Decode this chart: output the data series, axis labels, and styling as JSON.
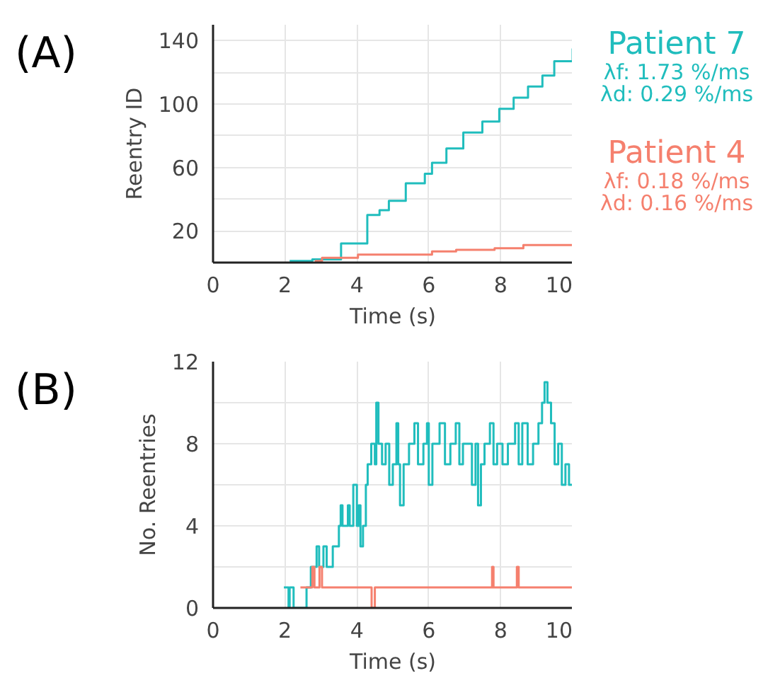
{
  "chart_data": [
    {
      "type": "step",
      "title": "(A)",
      "xlabel": "Time (s)",
      "ylabel": "Reentry ID",
      "xlim": [
        0,
        10
      ],
      "ylim": [
        0,
        150
      ],
      "xticks": [
        0,
        2,
        4,
        6,
        8,
        10
      ],
      "yticks": [
        20,
        {
          "value": 40,
          "label": null
        },
        60,
        {
          "value": 80,
          "label": null
        },
        100,
        {
          "value": 120,
          "label": null
        },
        140
      ],
      "grid": true,
      "line_style": "solid",
      "annotations": [
        "λf: 1.73 %/ms",
        "λd: 0.29 %/ms",
        "λf: 0.18 %/ms",
        "λd: 0.16 %/ms"
      ],
      "series": [
        {
          "name": "Patient 7",
          "color": "#20bdbd",
          "x": [
            2.13,
            2.76,
            3.56,
            4.29,
            4.63,
            4.89,
            5.36,
            5.89,
            6.09,
            6.49,
            6.96,
            7.49,
            7.96,
            8.36,
            8.76,
            9.16,
            9.49,
            10.0
          ],
          "values": [
            1,
            2,
            12,
            30,
            33,
            39,
            50,
            56,
            63,
            72,
            82,
            89,
            97,
            104,
            111,
            118,
            127,
            135
          ]
        },
        {
          "name": "Patient 4",
          "color": "#f5806e",
          "x": [
            2.83,
            3.03,
            4.03,
            6.09,
            6.76,
            7.83,
            8.63,
            10.0
          ],
          "values": [
            1,
            3,
            5,
            7,
            8,
            9,
            11,
            11
          ]
        }
      ]
    },
    {
      "type": "step",
      "title": "(B)",
      "xlabel": "Time (s)",
      "ylabel": "No. Reentries",
      "xlim": [
        0,
        10
      ],
      "ylim": [
        0,
        12
      ],
      "xticks": [
        0,
        2,
        4,
        6,
        8,
        10
      ],
      "yticks": [
        0,
        {
          "value": 2,
          "label": null
        },
        4,
        {
          "value": 6,
          "label": null
        },
        8,
        {
          "value": 10,
          "label": null
        },
        12
      ],
      "grid": true,
      "line_style": "solid",
      "series": [
        {
          "color": "#20bdbd",
          "x": [
            1.97,
            2.1,
            2.13,
            2.24,
            2.6,
            2.72,
            2.88,
            2.95,
            3.07,
            3.16,
            3.33,
            3.5,
            3.55,
            3.6,
            3.75,
            3.8,
            3.9,
            4.0,
            4.05,
            4.1,
            4.17,
            4.25,
            4.3,
            4.4,
            4.5,
            4.54,
            4.6,
            4.7,
            4.8,
            4.9,
            5.0,
            5.1,
            5.15,
            5.2,
            5.3,
            5.45,
            5.6,
            5.7,
            5.85,
            5.95,
            6.0,
            6.1,
            6.3,
            6.45,
            6.6,
            6.75,
            6.85,
            6.95,
            7.2,
            7.3,
            7.37,
            7.45,
            7.55,
            7.7,
            7.8,
            7.9,
            8.05,
            8.2,
            8.4,
            8.5,
            8.6,
            8.75,
            8.9,
            9.05,
            9.15,
            9.22,
            9.3,
            9.4,
            9.5,
            9.6,
            9.7,
            9.8,
            9.9,
            10.0
          ],
          "values": [
            1,
            0,
            1,
            0,
            1,
            2,
            3,
            2,
            3,
            2,
            3,
            4,
            5,
            4,
            5,
            4,
            6,
            4,
            5,
            3,
            4,
            6,
            7,
            8,
            7,
            10,
            8,
            7,
            8,
            6,
            7,
            9,
            7,
            5,
            7,
            8,
            9,
            7,
            8,
            9,
            6,
            8,
            9,
            7,
            8,
            9,
            7,
            8,
            6,
            8,
            5,
            7,
            8,
            9,
            7,
            8,
            7,
            8,
            9,
            7,
            9,
            7,
            8,
            9,
            10,
            11,
            10,
            9,
            7,
            8,
            6,
            7,
            6,
            6
          ]
        },
        {
          "color": "#f5806e",
          "x": [
            2.43,
            2.76,
            2.82,
            2.96,
            3.03,
            4.41,
            4.5,
            7.76,
            7.8,
            8.45,
            8.5,
            10.0
          ],
          "values": [
            1,
            2,
            1,
            2,
            1,
            0,
            1,
            2,
            1,
            2,
            1,
            1
          ]
        }
      ]
    }
  ]
}
